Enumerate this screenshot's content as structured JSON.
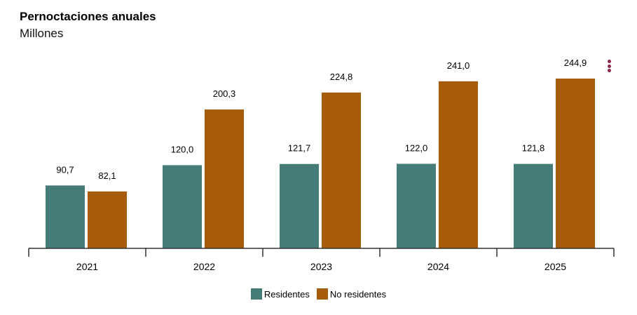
{
  "chart_data": {
    "type": "bar",
    "title": "Pernoctaciones anuales",
    "subtitle": "Millones",
    "categories": [
      "2021",
      "2022",
      "2023",
      "2024",
      "2025"
    ],
    "series": [
      {
        "name": "Residentes",
        "color": "#467c78",
        "values": [
          90.7,
          120.0,
          121.7,
          122.0,
          121.8
        ],
        "labels": [
          "90,7",
          "120,0",
          "121,7",
          "122,0",
          "121,8"
        ]
      },
      {
        "name": "No residentes",
        "color": "#a65c0a",
        "values": [
          82.1,
          200.3,
          224.8,
          241.0,
          244.9
        ],
        "labels": [
          "82,1",
          "200,3",
          "224,8",
          "241,0",
          "244,9"
        ]
      }
    ],
    "ylim": [
      0,
      250
    ],
    "grid": false,
    "legend_position": "bottom"
  },
  "menu_icon": "more-vertical-icon"
}
